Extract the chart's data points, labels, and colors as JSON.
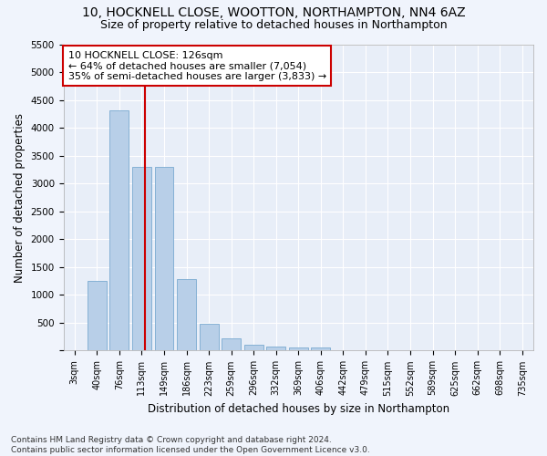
{
  "title1": "10, HOCKNELL CLOSE, WOOTTON, NORTHAMPTON, NN4 6AZ",
  "title2": "Size of property relative to detached houses in Northampton",
  "xlabel": "Distribution of detached houses by size in Northampton",
  "ylabel": "Number of detached properties",
  "categories": [
    "3sqm",
    "40sqm",
    "76sqm",
    "113sqm",
    "149sqm",
    "186sqm",
    "223sqm",
    "259sqm",
    "296sqm",
    "332sqm",
    "369sqm",
    "406sqm",
    "442sqm",
    "479sqm",
    "515sqm",
    "552sqm",
    "589sqm",
    "625sqm",
    "662sqm",
    "698sqm",
    "735sqm"
  ],
  "values": [
    0,
    1260,
    4320,
    3300,
    3300,
    1280,
    490,
    215,
    100,
    80,
    55,
    50,
    0,
    0,
    0,
    0,
    0,
    0,
    0,
    0,
    0
  ],
  "bar_color": "#b8cfe8",
  "bar_edge_color": "#7aaad0",
  "background_color": "#e8eef8",
  "grid_color": "#ffffff",
  "fig_bg_color": "#f0f4fc",
  "ylim": [
    0,
    5500
  ],
  "yticks": [
    0,
    500,
    1000,
    1500,
    2000,
    2500,
    3000,
    3500,
    4000,
    4500,
    5000,
    5500
  ],
  "vline_color": "#cc0000",
  "vline_x": 3.13,
  "annotation_text": "10 HOCKNELL CLOSE: 126sqm\n← 64% of detached houses are smaller (7,054)\n35% of semi-detached houses are larger (3,833) →",
  "annotation_box_color": "#ffffff",
  "annotation_box_edge_color": "#cc0000",
  "footnote": "Contains HM Land Registry data © Crown copyright and database right 2024.\nContains public sector information licensed under the Open Government Licence v3.0.",
  "title_fontsize": 10,
  "subtitle_fontsize": 9,
  "axis_label_fontsize": 8.5,
  "tick_fontsize": 7.5,
  "annotation_fontsize": 8,
  "footnote_fontsize": 6.5
}
